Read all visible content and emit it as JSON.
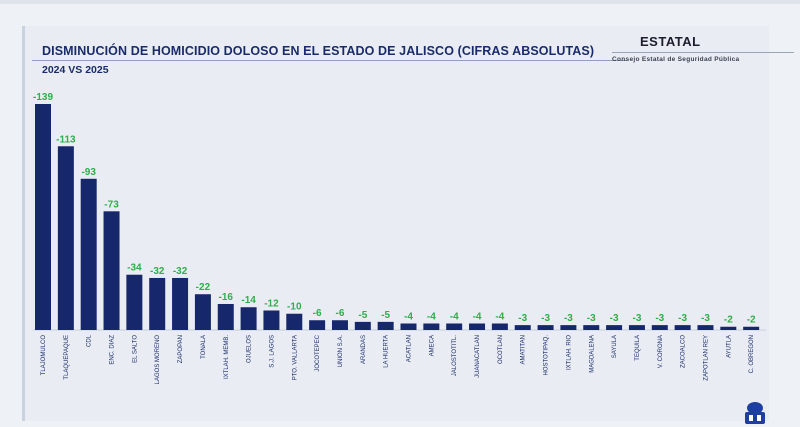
{
  "header": {
    "title": "DISMINUCIÓN DE HOMICIDIO DOLOSO EN EL ESTADO DE JALISCO (CIFRAS ABSOLUTAS)",
    "subtitle": "2024 VS 2025",
    "badge": "ESTATAL",
    "badge_sub": "Consejo Estatal de Seguridad Pública"
  },
  "colors": {
    "bar": "#17276b",
    "label": "#2fae4a",
    "axis": "#1a2b6b"
  },
  "chart_data": {
    "type": "bar",
    "title": "DISMINUCIÓN DE HOMICIDIO DOLOSO EN EL ESTADO DE JALISCO (CIFRAS ABSOLUTAS)",
    "subtitle": "2024 VS 2025",
    "xlabel": "",
    "ylabel": "",
    "ylim": [
      0,
      139
    ],
    "categories": [
      "TLAJOMULCO",
      "TLAQUEPAQUE",
      "CDL",
      "ENC. DIAZ",
      "EL SALTO",
      "LAGOS MORENO",
      "ZAPOPAN",
      "TONALA",
      "IXTLAH. MEMB.",
      "OJUELOS",
      "S.J. LAGOS",
      "PTO. VALLARTA",
      "JOCOTEPEC",
      "UNION S.A.",
      "ARANDAS",
      "LA HUERTA",
      "ACATLAN",
      "AMECA",
      "JALOSTOTITL.",
      "JUANACATLAN",
      "OCOTLAN",
      "AMATITAN",
      "HOSTOTIPAQ.",
      "IXTLAH. RIO",
      "MAGDALENA",
      "SAYULA",
      "TEQUILA",
      "V. CORONA",
      "ZACOALCO",
      "ZAPOTLAN REY",
      "AYUTLA",
      "C. OBREGON"
    ],
    "values": [
      -139,
      -113,
      -93,
      -73,
      -34,
      -32,
      -32,
      -22,
      -16,
      -14,
      -12,
      -10,
      -6,
      -6,
      -5,
      -5,
      -4,
      -4,
      -4,
      -4,
      -4,
      -3,
      -3,
      -3,
      -3,
      -3,
      -3,
      -3,
      -3,
      -3,
      -2,
      -2
    ],
    "value_labels": [
      "-139",
      "-113",
      "-93",
      "-73",
      "-34",
      "-32",
      "-32",
      "-22",
      "-16",
      "-14",
      "-12",
      "-10",
      "-6",
      "-6",
      "-5",
      "-5",
      "-4",
      "-4",
      "-4",
      "-4",
      "-4",
      "-3",
      "-3",
      "-3",
      "-3",
      "-3",
      "-3",
      "-3",
      "-3",
      "-3",
      "-2",
      "-2"
    ]
  }
}
